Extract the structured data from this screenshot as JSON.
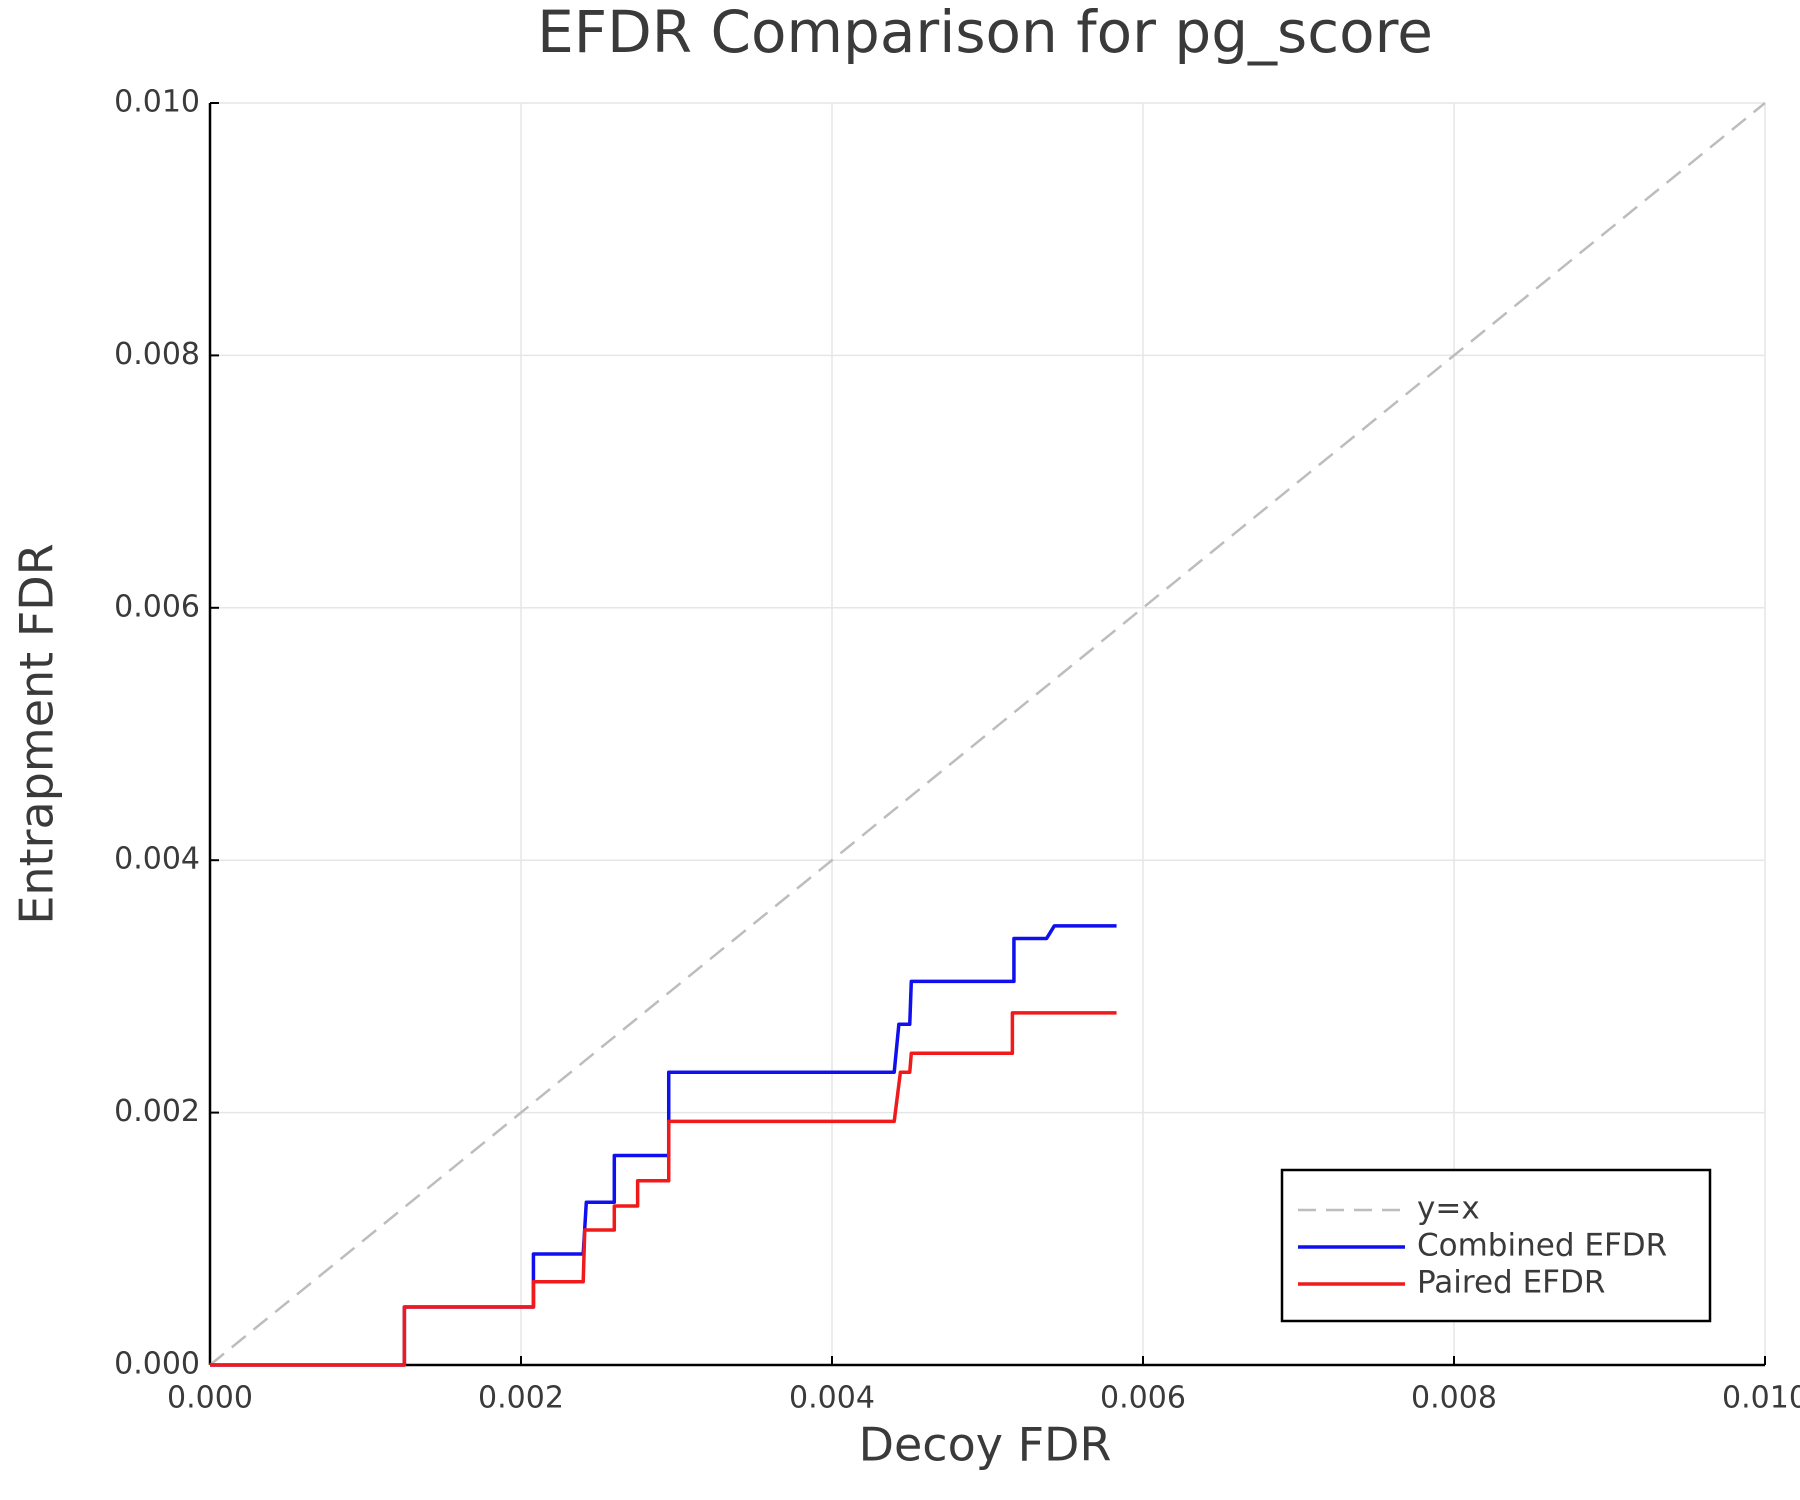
{
  "chart_data": {
    "type": "line",
    "title": "EFDR Comparison for pg_score",
    "x_label": "Decoy FDR",
    "y_label": "Entrapment FDR",
    "xlim": [
      0,
      0.01
    ],
    "ylim": [
      0,
      0.01
    ],
    "xticks": [
      {
        "value": 0,
        "label": "0.000"
      },
      {
        "value": 0.002,
        "label": "0.002"
      },
      {
        "value": 0.004,
        "label": "0.004"
      },
      {
        "value": 0.006,
        "label": "0.006"
      },
      {
        "value": 0.008,
        "label": "0.008"
      },
      {
        "value": 0.01,
        "label": "0.010"
      }
    ],
    "yticks": [
      {
        "value": 0,
        "label": "0.000"
      },
      {
        "value": 0.002,
        "label": "0.002"
      },
      {
        "value": 0.004,
        "label": "0.004"
      },
      {
        "value": 0.006,
        "label": "0.006"
      },
      {
        "value": 0.008,
        "label": "0.008"
      },
      {
        "value": 0.01,
        "label": "0.010"
      }
    ],
    "grid": true,
    "legend": "lower right",
    "series": [
      {
        "name": "y=x",
        "color": "#bdbdbd",
        "linestyle": "dashed",
        "x": [
          0,
          0.01
        ],
        "values": [
          0,
          0.01
        ]
      },
      {
        "name": "Combined EFDR",
        "color": "#1010ee",
        "linestyle": "solid",
        "x": [
          0,
          0.00125,
          0.00125,
          0.00208,
          0.00208,
          0.0024,
          0.00242,
          0.0026,
          0.0026,
          0.00295,
          0.00295,
          0.0044,
          0.00443,
          0.0045,
          0.00451,
          0.00517,
          0.00517,
          0.00538,
          0.00543,
          0.00583
        ],
        "values": [
          0,
          0,
          0.00046,
          0.00046,
          0.00088,
          0.00088,
          0.00129,
          0.00129,
          0.00166,
          0.00166,
          0.00232,
          0.00232,
          0.0027,
          0.0027,
          0.00304,
          0.00304,
          0.00338,
          0.00338,
          0.00348,
          0.00348
        ]
      },
      {
        "name": "Paired EFDR",
        "color": "#f01a1a",
        "linestyle": "solid",
        "x": [
          0,
          0.00125,
          0.00125,
          0.00208,
          0.00208,
          0.0024,
          0.00241,
          0.0026,
          0.0026,
          0.00275,
          0.00275,
          0.00295,
          0.00295,
          0.0044,
          0.00444,
          0.0045,
          0.00451,
          0.00516,
          0.00516,
          0.00583
        ],
        "values": [
          0,
          0,
          0.00046,
          0.00046,
          0.00066,
          0.00066,
          0.00107,
          0.00107,
          0.00126,
          0.00126,
          0.00146,
          0.00146,
          0.00193,
          0.00193,
          0.00232,
          0.00232,
          0.00247,
          0.00247,
          0.00279,
          0.00279
        ]
      }
    ]
  }
}
